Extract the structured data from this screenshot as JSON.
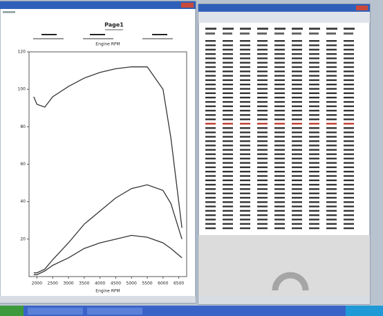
{
  "chart_data": {
    "type": "line",
    "title": "Page1",
    "x_label": "Engine RPM",
    "x": [
      1900,
      2000,
      2250,
      2500,
      3000,
      3500,
      4000,
      4500,
      5000,
      5500,
      6000,
      6250,
      6600
    ],
    "xlim": [
      1750,
      6750
    ],
    "xticks": [
      2000,
      2500,
      3000,
      3500,
      4000,
      4500,
      5000,
      5500,
      6000,
      6500
    ],
    "ylim": [
      0,
      120
    ],
    "yticks": [
      20,
      40,
      60,
      80,
      100,
      120
    ],
    "series": [
      {
        "color": "#333333",
        "values": [
          96,
          92,
          90.5,
          96,
          101.5,
          106,
          109,
          111,
          112,
          112,
          100,
          74,
          26
        ]
      },
      {
        "color": "#333333",
        "values": [
          2,
          2,
          4,
          9,
          18,
          28,
          35,
          42,
          47,
          49,
          46,
          39,
          20
        ]
      },
      {
        "color": "#333333",
        "values": [
          1,
          1,
          3,
          6,
          10,
          15,
          18,
          20,
          22,
          21,
          18,
          15,
          10
        ]
      }
    ]
  }
}
